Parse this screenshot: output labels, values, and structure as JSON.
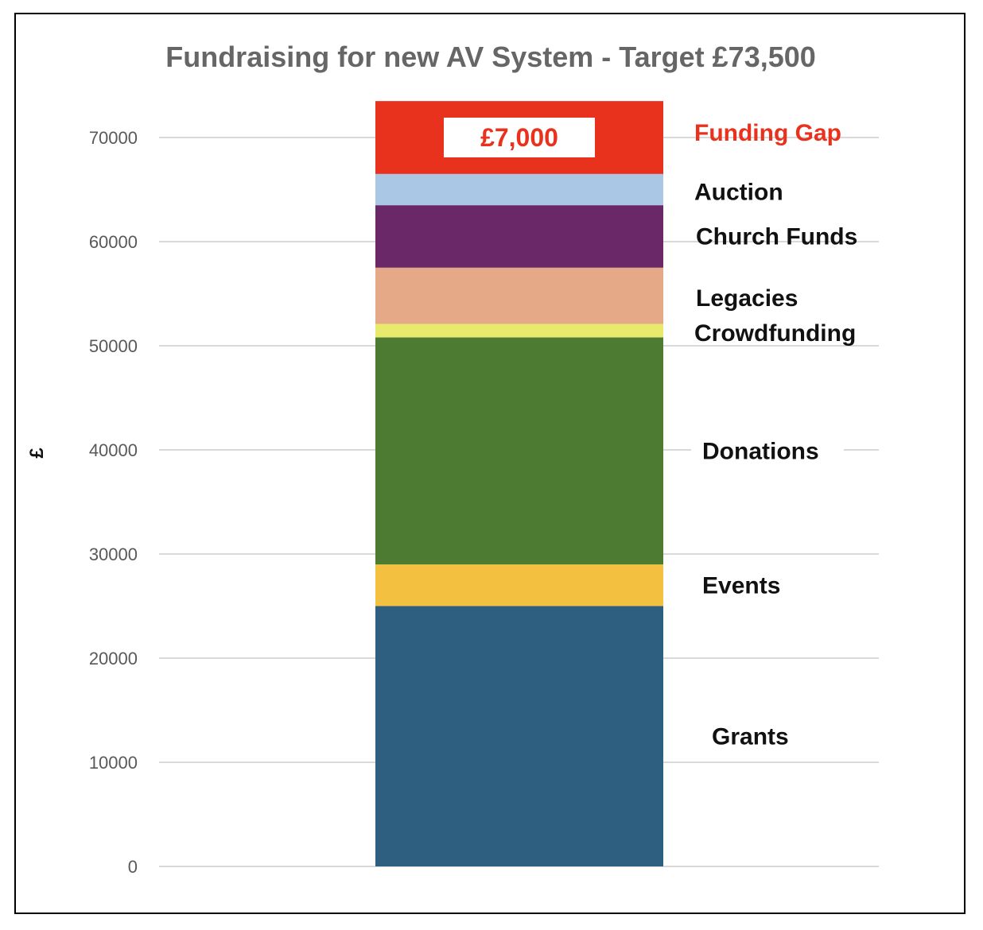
{
  "chart_data": {
    "type": "bar",
    "stacked": true,
    "title": "Fundraising for new AV System - Target £73,500",
    "ylabel": "£",
    "ylim": [
      0,
      70000
    ],
    "yticks": [
      "0",
      "10000",
      "20000",
      "30000",
      "40000",
      "50000",
      "60000",
      "70000"
    ],
    "grid": true,
    "series": [
      {
        "name": "Grants",
        "value": 25000,
        "color": "#2f5f80"
      },
      {
        "name": "Events",
        "value": 4000,
        "color": "#f4c040"
      },
      {
        "name": "Donations",
        "value": 21800,
        "color": "#4c7b31"
      },
      {
        "name": "Crowdfunding",
        "value": 1300,
        "color": "#e8ea6e"
      },
      {
        "name": "Legacies",
        "value": 5400,
        "color": "#e6a987"
      },
      {
        "name": "Church Funds",
        "value": 6000,
        "color": "#6b2868"
      },
      {
        "name": "Auction",
        "value": 3000,
        "color": "#aac8e6"
      },
      {
        "name": "Funding Gap",
        "value": 7000,
        "color": "#e8321e",
        "label": "£7,000"
      }
    ]
  },
  "colors": {
    "title": "#666666",
    "tick": "#595959",
    "grid": "#d9d9d9",
    "label": "#111111",
    "gap_label": "#e8321e"
  }
}
